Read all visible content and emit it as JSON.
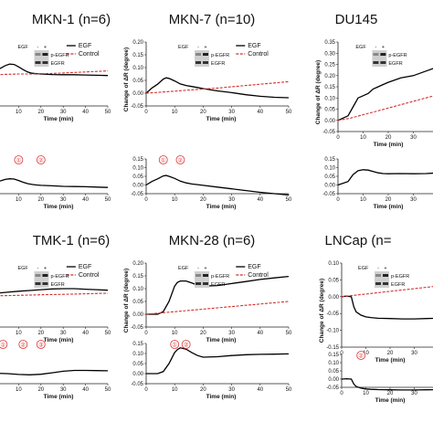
{
  "chart_data": [
    {
      "type": "line",
      "title": "MKN-1 (n=6)",
      "xlabel": "Time (min)",
      "ylabel": "",
      "xlim": [
        0,
        50
      ],
      "ylim": [
        -0.05,
        0.2
      ],
      "visible_xticks": [
        10,
        20,
        30,
        40,
        50
      ],
      "legend": {
        "placement": "top-right",
        "entries": [
          "EGF",
          "Control"
        ]
      },
      "blot": {
        "treatment": "EGF",
        "signs": [
          "-",
          "+"
        ],
        "bands": [
          "p-EGFR",
          "EGFR"
        ]
      },
      "series": [
        {
          "name": "EGF",
          "color": "#000000",
          "style": "solid",
          "x": [
            0,
            2,
            4,
            6,
            8,
            10,
            12,
            14,
            16,
            18,
            20,
            25,
            30,
            35,
            40,
            45,
            50
          ],
          "y": [
            0.09,
            0.098,
            0.108,
            0.114,
            0.112,
            0.103,
            0.092,
            0.083,
            0.078,
            0.076,
            0.075,
            0.073,
            0.072,
            0.072,
            0.071,
            0.07,
            0.069
          ]
        },
        {
          "name": "Control",
          "color": "#d32f2f",
          "style": "dashed",
          "x": [
            0,
            5,
            10,
            15,
            20,
            25,
            30,
            35,
            40,
            45,
            50
          ],
          "y": [
            0.072,
            0.074,
            0.075,
            0.075,
            0.076,
            0.077,
            0.079,
            0.081,
            0.083,
            0.085,
            0.087
          ]
        }
      ],
      "inset": {
        "markers": [
          {
            "label": "①",
            "x": 10
          },
          {
            "label": "②",
            "x": 20
          }
        ],
        "x": [
          0,
          2,
          4,
          6,
          8,
          10,
          12,
          14,
          16,
          18,
          20,
          25,
          30,
          35,
          40,
          45,
          50
        ],
        "y": [
          0.018,
          0.024,
          0.032,
          0.036,
          0.034,
          0.026,
          0.016,
          0.008,
          0.003,
          0.0,
          -0.002,
          -0.005,
          -0.008,
          -0.009,
          -0.01,
          -0.012,
          -0.014
        ]
      }
    },
    {
      "type": "line",
      "title": "MKN-7 (n=10)",
      "xlabel": "Time (min)",
      "ylabel": "Change of ΔR (degree)",
      "xlim": [
        0,
        50
      ],
      "ylim": [
        -0.05,
        0.2
      ],
      "yticks": [
        -0.05,
        0.0,
        0.05,
        0.1,
        0.15,
        0.2
      ],
      "xticks": [
        0,
        10,
        20,
        30,
        40,
        50
      ],
      "legend": {
        "placement": "top-right",
        "entries": [
          "EGF",
          "Control"
        ]
      },
      "blot": {
        "treatment": "EGF",
        "signs": [
          "-",
          "+"
        ],
        "bands": [
          "p-EGFR",
          "EGFR"
        ]
      },
      "series": [
        {
          "name": "EGF",
          "color": "#000000",
          "style": "solid",
          "x": [
            0,
            2,
            4,
            6,
            7,
            8,
            10,
            12,
            14,
            16,
            18,
            20,
            25,
            30,
            35,
            40,
            45,
            50
          ],
          "y": [
            0.0,
            0.02,
            0.035,
            0.055,
            0.06,
            0.058,
            0.048,
            0.036,
            0.03,
            0.026,
            0.022,
            0.018,
            0.009,
            0.002,
            -0.006,
            -0.012,
            -0.016,
            -0.018
          ]
        },
        {
          "name": "Control",
          "color": "#d32f2f",
          "style": "dashed",
          "x": [
            0,
            5,
            10,
            15,
            20,
            25,
            30,
            35,
            40,
            45,
            50
          ],
          "y": [
            0.0,
            0.004,
            0.008,
            0.012,
            0.016,
            0.02,
            0.025,
            0.03,
            0.035,
            0.04,
            0.045
          ]
        }
      ],
      "inset": {
        "yticks": [
          -0.05,
          0.0,
          0.05,
          0.1,
          0.15
        ],
        "xticks": [
          0,
          10,
          20,
          30,
          40,
          50
        ],
        "markers": [
          {
            "label": "①",
            "x": 6
          },
          {
            "label": "②",
            "x": 12
          }
        ],
        "x": [
          0,
          2,
          4,
          6,
          7,
          8,
          10,
          12,
          14,
          16,
          18,
          20,
          25,
          30,
          35,
          40,
          45,
          50
        ],
        "y": [
          0.0,
          0.02,
          0.035,
          0.052,
          0.055,
          0.05,
          0.038,
          0.022,
          0.012,
          0.006,
          0.002,
          -0.002,
          -0.012,
          -0.022,
          -0.032,
          -0.042,
          -0.05,
          -0.058
        ]
      }
    },
    {
      "type": "line",
      "title": "DU145",
      "xlabel": "Time (min)",
      "ylabel": "Change of ΔR (degree)",
      "xlim": [
        0,
        40
      ],
      "ylim": [
        -0.05,
        0.35
      ],
      "yticks": [
        -0.05,
        0.0,
        0.05,
        0.1,
        0.15,
        0.2,
        0.25,
        0.3,
        0.35
      ],
      "xticks": [
        0,
        10,
        20,
        30
      ],
      "legend": {
        "placement": "top-right",
        "entries": []
      },
      "blot": {
        "treatment": "EGF",
        "signs": [
          "-",
          "+"
        ],
        "bands": [
          "p-EGFR",
          "EGFR"
        ]
      },
      "series": [
        {
          "name": "EGF",
          "color": "#000000",
          "style": "solid",
          "x": [
            0,
            4,
            6,
            8,
            10,
            12,
            14,
            16,
            18,
            20,
            25,
            30,
            35,
            40
          ],
          "y": [
            0.0,
            0.02,
            0.06,
            0.1,
            0.11,
            0.12,
            0.14,
            0.15,
            0.16,
            0.17,
            0.19,
            0.2,
            0.22,
            0.24
          ]
        },
        {
          "name": "Control",
          "color": "#d32f2f",
          "style": "dashed",
          "x": [
            0,
            5,
            10,
            15,
            20,
            25,
            30,
            35,
            40
          ],
          "y": [
            0.0,
            0.01,
            0.025,
            0.04,
            0.055,
            0.07,
            0.085,
            0.1,
            0.115
          ]
        }
      ],
      "inset": {
        "yticks": [
          -0.05,
          0.0,
          0.05,
          0.1,
          0.15
        ],
        "xticks": [
          0,
          10,
          20,
          30
        ],
        "x": [
          0,
          4,
          6,
          8,
          10,
          12,
          14,
          16,
          18,
          20,
          25,
          30,
          35,
          40
        ],
        "y": [
          0.0,
          0.02,
          0.06,
          0.082,
          0.088,
          0.086,
          0.078,
          0.07,
          0.066,
          0.065,
          0.066,
          0.065,
          0.066,
          0.07
        ]
      }
    },
    {
      "type": "line",
      "title": "TMK-1 (n=6)",
      "xlabel": "Time (min)",
      "ylabel": "",
      "xlim": [
        0,
        50
      ],
      "ylim": [
        -0.05,
        0.2
      ],
      "visible_xticks": [
        10,
        20,
        30,
        40,
        50
      ],
      "legend": {
        "placement": "top-right",
        "entries": [
          "EGF",
          "Control"
        ]
      },
      "blot": {
        "treatment": "EGF",
        "signs": [
          "-",
          "+"
        ],
        "bands": [
          "p-EGFR",
          "EGFR"
        ]
      },
      "series": [
        {
          "name": "EGF",
          "color": "#000000",
          "style": "solid",
          "x": [
            0,
            5,
            10,
            15,
            20,
            25,
            30,
            35,
            40,
            45,
            50
          ],
          "y": [
            0.082,
            0.086,
            0.09,
            0.093,
            0.096,
            0.099,
            0.1,
            0.1,
            0.098,
            0.096,
            0.094
          ]
        },
        {
          "name": "Control",
          "color": "#d32f2f",
          "style": "dashed",
          "x": [
            0,
            5,
            10,
            15,
            20,
            25,
            30,
            35,
            40,
            45,
            50
          ],
          "y": [
            0.072,
            0.073,
            0.074,
            0.075,
            0.076,
            0.077,
            0.078,
            0.079,
            0.08,
            0.081,
            0.082
          ]
        }
      ],
      "inset": {
        "markers": [
          {
            "label": "①",
            "x": 3
          },
          {
            "label": "②",
            "x": 12
          },
          {
            "label": "③",
            "x": 20
          }
        ],
        "x": [
          0,
          5,
          10,
          15,
          20,
          25,
          30,
          35,
          40,
          45,
          50
        ],
        "y": [
          0.002,
          0.0,
          -0.004,
          -0.006,
          -0.003,
          0.004,
          0.012,
          0.016,
          0.016,
          0.015,
          0.014
        ]
      }
    },
    {
      "type": "line",
      "title": "MKN-28 (n=6)",
      "xlabel": "Time (min)",
      "ylabel": "Change of ΔR (degree)",
      "xlim": [
        0,
        50
      ],
      "ylim": [
        -0.05,
        0.2
      ],
      "yticks": [
        -0.05,
        0.0,
        0.05,
        0.1,
        0.15,
        0.2
      ],
      "xticks": [
        0,
        10,
        20,
        30,
        40,
        50
      ],
      "legend": {
        "placement": "top-right",
        "entries": [
          "EGF",
          "Control"
        ]
      },
      "blot": {
        "treatment": "EGF",
        "signs": [
          "-",
          "+"
        ],
        "bands": [
          "p-EGFR",
          "EGFR"
        ]
      },
      "series": [
        {
          "name": "EGF",
          "color": "#000000",
          "style": "solid",
          "x": [
            0,
            4,
            6,
            8,
            10,
            11,
            12,
            14,
            16,
            18,
            20,
            25,
            30,
            35,
            40,
            45,
            50
          ],
          "y": [
            0.0,
            0.0,
            0.01,
            0.05,
            0.11,
            0.125,
            0.13,
            0.13,
            0.122,
            0.114,
            0.11,
            0.112,
            0.12,
            0.128,
            0.136,
            0.142,
            0.148
          ]
        },
        {
          "name": "Control",
          "color": "#d32f2f",
          "style": "dashed",
          "x": [
            0,
            5,
            10,
            15,
            20,
            25,
            30,
            35,
            40,
            45,
            50
          ],
          "y": [
            0.0,
            0.005,
            0.01,
            0.015,
            0.02,
            0.025,
            0.03,
            0.035,
            0.04,
            0.045,
            0.05
          ]
        }
      ],
      "inset": {
        "yticks": [
          -0.05,
          0.0,
          0.05,
          0.1,
          0.15
        ],
        "xticks": [
          0,
          10,
          20,
          30,
          40,
          50
        ],
        "markers": [
          {
            "label": "①",
            "x": 10
          },
          {
            "label": "②",
            "x": 14
          }
        ],
        "x": [
          0,
          4,
          6,
          8,
          10,
          11,
          12,
          14,
          16,
          18,
          20,
          25,
          30,
          35,
          40,
          45,
          50
        ],
        "y": [
          0.0,
          0.0,
          0.01,
          0.05,
          0.105,
          0.12,
          0.128,
          0.122,
          0.105,
          0.09,
          0.082,
          0.084,
          0.09,
          0.094,
          0.096,
          0.097,
          0.098
        ]
      }
    },
    {
      "type": "line",
      "title": "LNCap (n=",
      "xlabel": "Time (min)",
      "ylabel": "Change of ΔR (degree)",
      "xlim": [
        0,
        40
      ],
      "ylim": [
        -0.15,
        0.1
      ],
      "yticks": [
        -0.15,
        -0.1,
        -0.05,
        0.0,
        0.05,
        0.1
      ],
      "xticks": [
        0,
        10,
        20,
        30
      ],
      "legend": {
        "placement": "top-right",
        "entries": []
      },
      "blot": {
        "treatment": "EGF",
        "signs": [
          "-",
          "+"
        ],
        "bands": [
          "p-EGFR",
          "EGFR"
        ]
      },
      "series": [
        {
          "name": "EGF",
          "color": "#000000",
          "style": "solid",
          "x": [
            0,
            2,
            4,
            5,
            6,
            8,
            10,
            12,
            15,
            20,
            25,
            30,
            35,
            40
          ],
          "y": [
            0.0,
            0.002,
            0.0,
            -0.03,
            -0.045,
            -0.055,
            -0.06,
            -0.062,
            -0.064,
            -0.065,
            -0.066,
            -0.066,
            -0.065,
            -0.064
          ]
        },
        {
          "name": "Control",
          "color": "#d32f2f",
          "style": "dashed",
          "x": [
            0,
            5,
            10,
            15,
            20,
            25,
            30,
            35,
            40
          ],
          "y": [
            0.0,
            0.004,
            0.008,
            0.012,
            0.016,
            0.02,
            0.024,
            0.028,
            0.032
          ]
        }
      ],
      "inset": {
        "yticks": [
          -0.05,
          0.0,
          0.05,
          0.1,
          0.15
        ],
        "xticks": [
          0,
          10,
          20,
          30
        ],
        "markers": [
          {
            "label": "②",
            "x": 8
          }
        ],
        "x": [
          0,
          2,
          4,
          5,
          6,
          8,
          10,
          12,
          15,
          20,
          25,
          30,
          35,
          40
        ],
        "y": [
          0.0,
          0.002,
          0.0,
          -0.03,
          -0.045,
          -0.055,
          -0.06,
          -0.062,
          -0.064,
          -0.065,
          -0.066,
          -0.066,
          -0.065,
          -0.064
        ]
      }
    }
  ]
}
